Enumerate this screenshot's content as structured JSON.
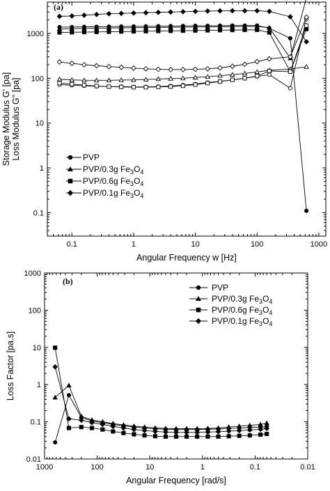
{
  "chart_data": [
    {
      "panel_label": "(a)",
      "type": "line",
      "xlabel": "Angular Frequency w [Hz]",
      "ylabel": [
        "Storage Modulus G' [pa]",
        "Loss Modulus G\" [pa]"
      ],
      "xscale": "log",
      "yscale": "log",
      "xlim": [
        0.04,
        1300
      ],
      "ylim": [
        0.03,
        5000
      ],
      "x_ticks": [
        "0.1",
        "1",
        "10",
        "100",
        "1000"
      ],
      "y_ticks": [
        "0.1",
        "1",
        "10",
        "100",
        "1000"
      ],
      "legend_position": "bottom-left",
      "x": [
        0.063,
        0.1,
        0.158,
        0.251,
        0.398,
        0.631,
        1,
        1.58,
        2.51,
        3.98,
        6.31,
        10,
        15.8,
        25.1,
        39.8,
        63.1,
        100,
        158,
        345,
        630
      ],
      "series": [
        {
          "name": "PVP",
          "role": "storage",
          "marker": "filled-circle",
          "values": [
            1380,
            1390,
            1400,
            1410,
            1420,
            1425,
            1430,
            1440,
            1450,
            1460,
            1470,
            1480,
            1480,
            1490,
            1500,
            1500,
            1500,
            1300,
            780,
            0.11
          ]
        },
        {
          "name": "PVP/0.3g Fe3O4",
          "role": "storage",
          "marker": "filled-triangle",
          "values": [
            1260,
            1280,
            1300,
            1310,
            1320,
            1330,
            1340,
            1350,
            1360,
            1370,
            1380,
            1390,
            1400,
            1410,
            1420,
            1430,
            1430,
            1350,
            280,
            6200
          ]
        },
        {
          "name": "PVP/0.6g Fe3O4",
          "role": "storage",
          "marker": "filled-square",
          "values": [
            1050,
            1060,
            1070,
            1080,
            1090,
            1100,
            1110,
            1120,
            1130,
            1140,
            1150,
            1160,
            1170,
            1180,
            1190,
            1200,
            1200,
            1050,
            140,
            1250
          ]
        },
        {
          "name": "PVP/0.1g Fe3O4",
          "role": "storage",
          "marker": "filled-diamond",
          "values": [
            2400,
            2450,
            2550,
            2650,
            2750,
            2800,
            2850,
            2900,
            2950,
            3000,
            3050,
            3100,
            3150,
            3180,
            3200,
            3200,
            3200,
            3100,
            2350,
            650
          ]
        },
        {
          "name": "PVP",
          "role": "loss",
          "marker": "open-circle",
          "values": [
            72,
            70,
            68,
            66,
            65,
            65,
            64,
            64,
            65,
            67,
            70,
            74,
            80,
            85,
            92,
            100,
            110,
            120,
            60,
            2100
          ]
        },
        {
          "name": "PVP/0.3g Fe3O4",
          "role": "loss",
          "marker": "open-triangle",
          "values": [
            95,
            92,
            90,
            90,
            90,
            91,
            92,
            94,
            96,
            98,
            100,
            104,
            108,
            114,
            120,
            128,
            138,
            150,
            160,
            180
          ]
        },
        {
          "name": "PVP/0.6g Fe3O4",
          "role": "loss",
          "marker": "open-square",
          "values": [
            78,
            74,
            70,
            67,
            65,
            64,
            63,
            63,
            64,
            65,
            68,
            72,
            78,
            84,
            92,
            100,
            112,
            145,
            140,
            1500
          ]
        },
        {
          "name": "PVP/0.1g Fe3O4",
          "role": "loss",
          "marker": "open-diamond",
          "values": [
            230,
            215,
            200,
            190,
            182,
            175,
            168,
            162,
            158,
            156,
            156,
            158,
            162,
            170,
            185,
            205,
            235,
            270,
            300,
            2300
          ]
        }
      ],
      "legend": [
        {
          "label": "PVP",
          "marker": "filled-circle"
        },
        {
          "label": "PVP/0.3g Fe₃O₄",
          "marker": "filled-triangle"
        },
        {
          "label": "PVP/0.6g Fe₃O₄",
          "marker": "filled-square"
        },
        {
          "label": "PVP/0.1g Fe₃O₄",
          "marker": "filled-diamond"
        }
      ]
    },
    {
      "panel_label": "(b)",
      "type": "line",
      "xlabel": "Angular Frequency [rad/s]",
      "ylabel": "Loss Factor [pa.s]",
      "xscale": "log",
      "yscale": "log",
      "x_reversed": true,
      "xlim": [
        1000,
        0.01
      ],
      "ylim": [
        0.01,
        1000
      ],
      "x_ticks": [
        "1000",
        "100",
        "10",
        "1",
        "0.1",
        "0.01"
      ],
      "y_ticks": [
        "0.01",
        "0.1",
        "1",
        "10",
        "100",
        "1000"
      ],
      "legend_position": "top-right",
      "x": [
        630,
        345,
        200,
        126,
        79,
        50,
        31.6,
        20,
        12.6,
        7.9,
        5,
        3.16,
        2,
        1.26,
        0.79,
        0.5,
        0.316,
        0.2,
        0.126,
        0.079,
        0.06
      ],
      "series": [
        {
          "name": "PVP",
          "marker": "filled-circle",
          "values": [
            0.028,
            0.52,
            0.13,
            0.105,
            0.095,
            0.085,
            0.078,
            0.072,
            0.068,
            0.065,
            0.063,
            0.062,
            0.062,
            0.062,
            0.063,
            0.064,
            0.066,
            0.068,
            0.07,
            0.072,
            0.074
          ]
        },
        {
          "name": "PVP/0.3g Fe3O4",
          "marker": "filled-triangle",
          "values": [
            0.45,
            0.95,
            0.14,
            0.112,
            0.1,
            0.09,
            0.082,
            0.076,
            0.072,
            0.068,
            0.066,
            0.065,
            0.065,
            0.065,
            0.066,
            0.068,
            0.072,
            0.076,
            0.08,
            0.085,
            0.092
          ]
        },
        {
          "name": "PVP/0.6g Fe3O4",
          "marker": "filled-square",
          "values": [
            9.8,
            0.068,
            0.072,
            0.068,
            0.062,
            0.055,
            0.05,
            0.046,
            0.043,
            0.041,
            0.04,
            0.04,
            0.04,
            0.04,
            0.04,
            0.04,
            0.041,
            0.042,
            0.043,
            0.045,
            0.047
          ]
        },
        {
          "name": "PVP/0.1g Fe3O4",
          "marker": "filled-diamond",
          "values": [
            3.0,
            0.12,
            0.11,
            0.095,
            0.085,
            0.075,
            0.068,
            0.062,
            0.058,
            0.055,
            0.053,
            0.052,
            0.052,
            0.052,
            0.053,
            0.054,
            0.056,
            0.058,
            0.06,
            0.063,
            0.066
          ]
        }
      ],
      "legend": [
        {
          "label": "PVP",
          "marker": "filled-circle"
        },
        {
          "label": "PVP/0.3g Fe₃O₄",
          "marker": "filled-triangle"
        },
        {
          "label": "PVP/0.6g Fe₃O₄",
          "marker": "filled-square"
        },
        {
          "label": "PVP/0.1g Fe₃O₄",
          "marker": "filled-diamond"
        }
      ]
    }
  ]
}
